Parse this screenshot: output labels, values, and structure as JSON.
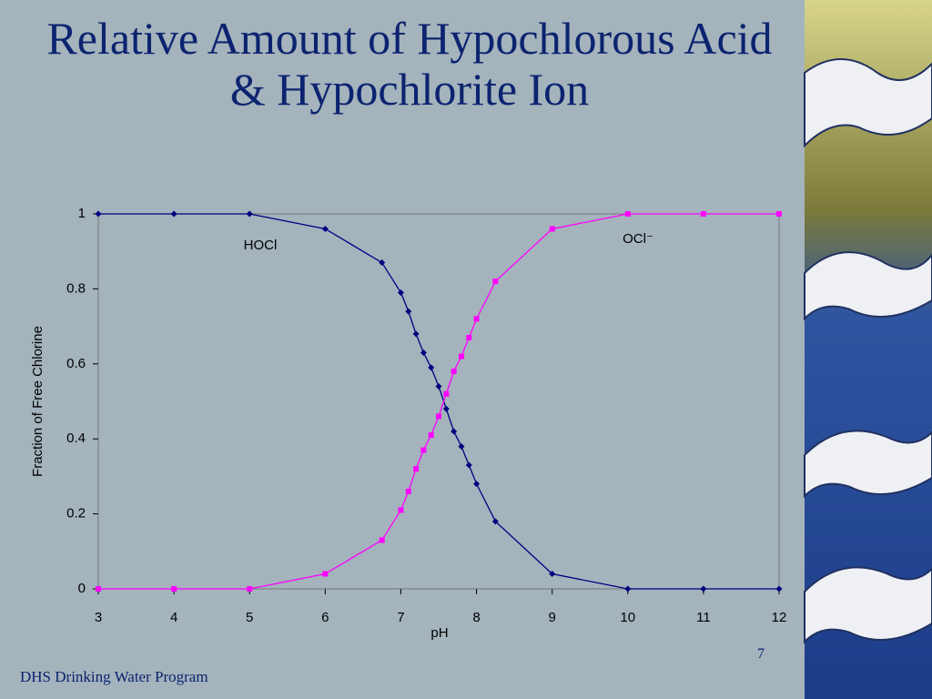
{
  "chart_data": {
    "type": "line",
    "title": "Relative Amount of Hypochlorous Acid & Hypochlorite Ion",
    "x_label": "pH",
    "y_label": "Fraction of Free Chlorine",
    "x": [
      3,
      4,
      5,
      6,
      6.75,
      7,
      7.1,
      7.2,
      7.3,
      7.4,
      7.5,
      7.6,
      7.7,
      7.8,
      7.9,
      8,
      8.25,
      9,
      10,
      11,
      12
    ],
    "series": [
      {
        "name": "HOCl",
        "color": "#000080",
        "marker": "diamond",
        "values": [
          1,
          1,
          1,
          0.96,
          0.87,
          0.79,
          0.74,
          0.68,
          0.63,
          0.59,
          0.54,
          0.48,
          0.42,
          0.38,
          0.33,
          0.28,
          0.18,
          0.04,
          0,
          0,
          0
        ]
      },
      {
        "name": "OCl⁻",
        "color": "#ff00ff",
        "marker": "square",
        "values": [
          0,
          0,
          0,
          0.04,
          0.13,
          0.21,
          0.26,
          0.32,
          0.37,
          0.41,
          0.46,
          0.52,
          0.58,
          0.62,
          0.67,
          0.72,
          0.82,
          0.96,
          1,
          1,
          1
        ]
      }
    ],
    "xlim": [
      3,
      12
    ],
    "ylim": [
      0,
      1
    ],
    "xticks": [
      3,
      4,
      5,
      6,
      7,
      8,
      9,
      10,
      11,
      12
    ],
    "yticks": [
      0,
      0.2,
      0.4,
      0.6,
      0.8,
      1
    ]
  },
  "slide": {
    "footer": "DHS Drinking Water Program",
    "page_number": "7"
  }
}
